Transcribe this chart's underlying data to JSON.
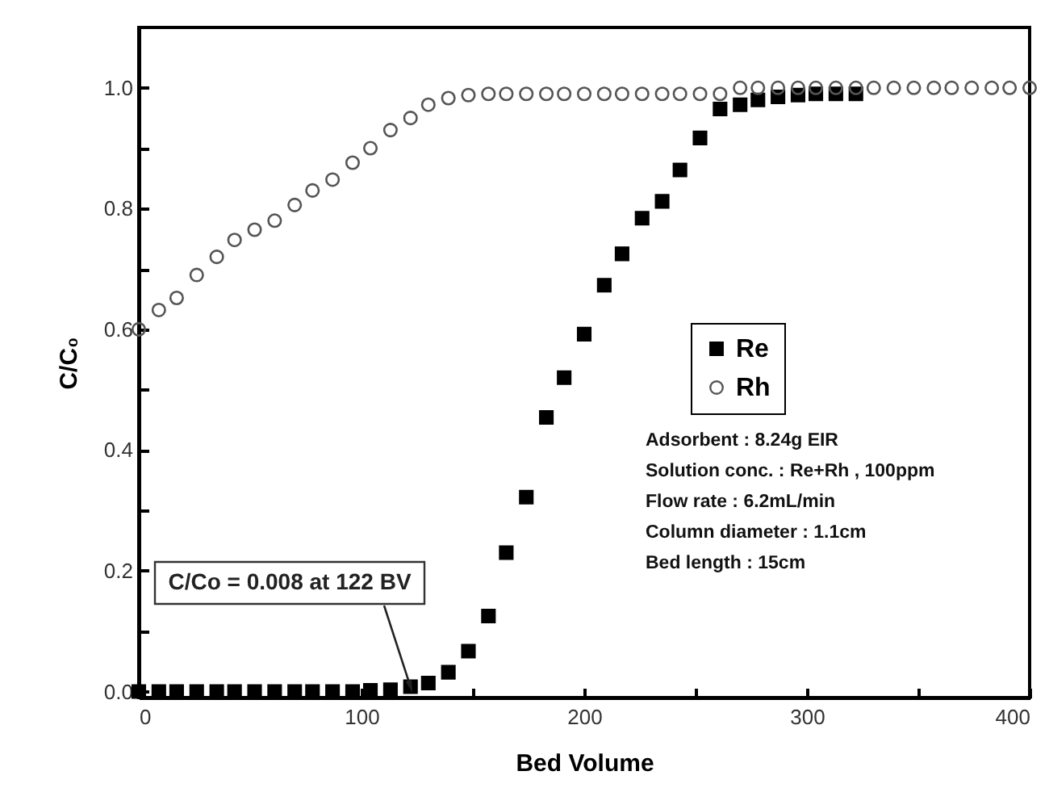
{
  "chart_data": {
    "type": "scatter",
    "xlabel": "Bed Volume",
    "ylabel": "C/C₀",
    "x": [
      0,
      9,
      17,
      26,
      35,
      43,
      52,
      61,
      70,
      78,
      87,
      96,
      104,
      113,
      122,
      130,
      139,
      148,
      157,
      165,
      174,
      183,
      191,
      200,
      209,
      217,
      226,
      235,
      243,
      252,
      261,
      270,
      278,
      287,
      296,
      304,
      313,
      322,
      330,
      339,
      348,
      357,
      365,
      374,
      383,
      391,
      400
    ],
    "series": [
      {
        "name": "Re",
        "color": "#000000",
        "marker": "square",
        "values": [
          0,
          0,
          0,
          0,
          0,
          0,
          0,
          0,
          0,
          0,
          0,
          0,
          0.002,
          0.003,
          0.008,
          0.014,
          0.032,
          0.067,
          0.125,
          0.23,
          0.322,
          0.454,
          0.52,
          0.592,
          0.673,
          0.725,
          0.784,
          0.812,
          0.864,
          0.917,
          0.965,
          0.972,
          0.98,
          0.985,
          0.988,
          0.99,
          0.99,
          0.99,
          null,
          null,
          null,
          null,
          null,
          null,
          null,
          null,
          null
        ]
      },
      {
        "name": "Rh",
        "color": "#555555",
        "marker": "circle",
        "values": [
          0.6,
          0.632,
          0.652,
          0.69,
          0.72,
          0.748,
          0.765,
          0.78,
          0.806,
          0.83,
          0.848,
          0.876,
          0.9,
          0.93,
          0.95,
          0.972,
          0.983,
          0.988,
          0.99,
          0.99,
          0.99,
          0.99,
          0.99,
          0.99,
          0.99,
          0.99,
          0.99,
          0.99,
          0.99,
          0.99,
          0.99,
          1.0,
          1.0,
          1.0,
          1.0,
          1.0,
          1.0,
          1.0,
          1.0,
          1.0,
          1.0,
          1.0,
          1.0,
          1.0,
          1.0,
          1.0,
          1.0
        ]
      }
    ],
    "xlim": [
      0,
      400
    ],
    "xticks": [
      0,
      {
        "value": 50,
        "label": null
      },
      100,
      {
        "value": 150,
        "label": null
      },
      200,
      {
        "value": 250,
        "label": null
      },
      300,
      {
        "value": 350,
        "label": null
      },
      400
    ],
    "ylim": [
      -0.01,
      1.1
    ],
    "yticks": [
      {
        "value": 0,
        "label": "0.0"
      },
      {
        "value": 0.1,
        "label": null
      },
      {
        "value": 0.2,
        "label": "0.2"
      },
      {
        "value": 0.3,
        "label": null
      },
      {
        "value": 0.4,
        "label": "0.4"
      },
      {
        "value": 0.5,
        "label": null
      },
      {
        "value": 0.6,
        "label": "0.6"
      },
      {
        "value": 0.7,
        "label": null
      },
      {
        "value": 0.8,
        "label": "0.8"
      },
      {
        "value": 0.9,
        "label": null
      },
      {
        "value": 1.0,
        "label": "1.0"
      }
    ],
    "legend": "right",
    "grid": false,
    "annotations": [
      {
        "text": "C/Co = 0.008 at 122 BV",
        "x": 122,
        "y": 0.008
      },
      "Adsorbent : 8.24g EIR",
      "Solution conc. : Re+Rh , 100ppm",
      "Flow rate : 6.2mL/min",
      "Column diameter : 1.1cm",
      "Bed length : 15cm"
    ]
  }
}
